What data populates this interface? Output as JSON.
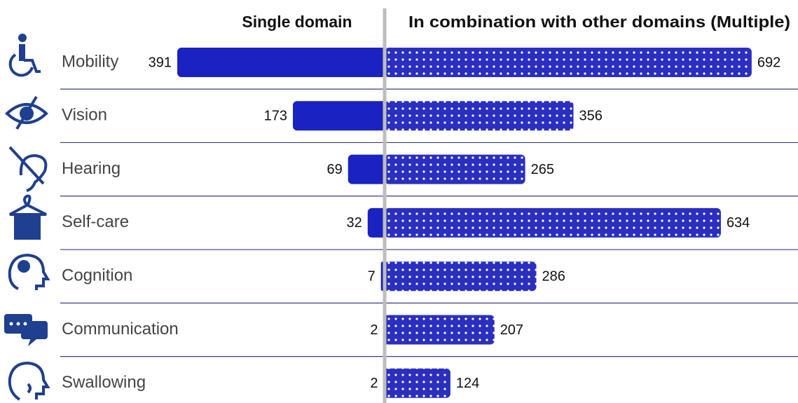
{
  "chart_data": {
    "type": "diverging-bar",
    "categories": [
      "Mobility",
      "Vision",
      "Hearing",
      "Self-care",
      "Cognition",
      "Communication",
      "Swallowing"
    ],
    "series": [
      {
        "name": "Single domain",
        "color": "#1a22c2",
        "values": [
          391,
          173,
          69,
          32,
          7,
          2,
          2
        ]
      },
      {
        "name": "In combination with other domains (Multiple)",
        "color": "#2a2fc0",
        "values": [
          692,
          356,
          265,
          634,
          286,
          207,
          124
        ]
      }
    ]
  }
}
